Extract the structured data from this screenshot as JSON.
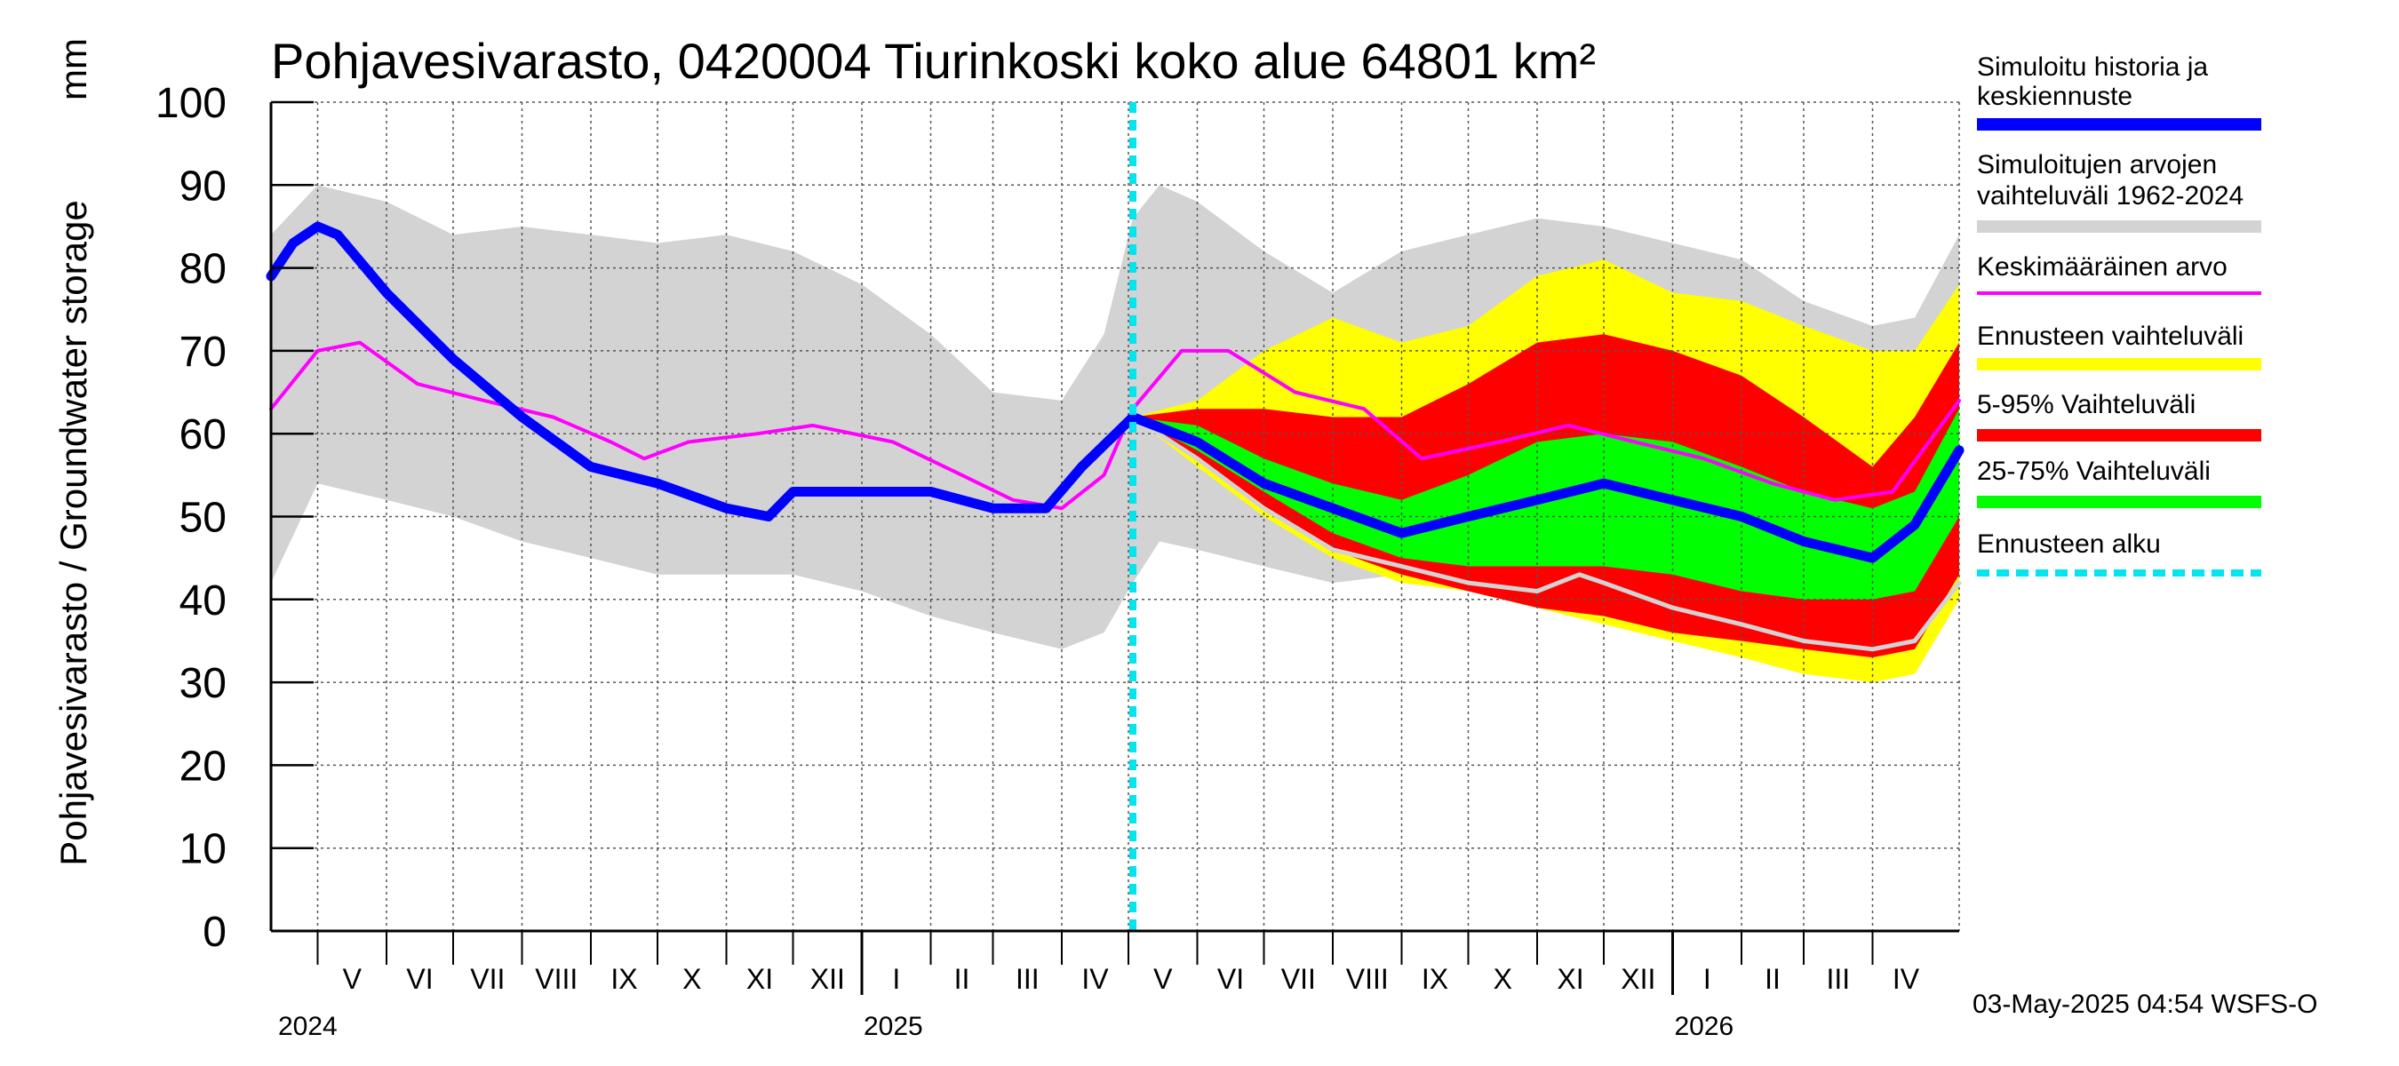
{
  "chart_data": {
    "type": "line",
    "title": "Pohjavesivarasto, 0420004 Tiurinkoski koko alue 64801 km²",
    "ylabel": "Pohjavesivarasto / Groundwater storage",
    "yunit": "mm",
    "ylim": [
      0,
      100
    ],
    "yticks": [
      0,
      10,
      20,
      30,
      40,
      50,
      60,
      70,
      80,
      90,
      100
    ],
    "xlim": [
      "2024-04-10",
      "2026-05-10"
    ],
    "forecast_start": "2025-05-03",
    "grid": true,
    "legend_position": "right",
    "months": [
      {
        "label": "V",
        "date": "2024-05-15"
      },
      {
        "label": "VI",
        "date": "2024-06-15"
      },
      {
        "label": "VII",
        "date": "2024-07-15"
      },
      {
        "label": "VIII",
        "date": "2024-08-15"
      },
      {
        "label": "IX",
        "date": "2024-09-15"
      },
      {
        "label": "X",
        "date": "2024-10-15"
      },
      {
        "label": "XI",
        "date": "2024-11-15"
      },
      {
        "label": "XII",
        "date": "2024-12-15"
      },
      {
        "label": "I",
        "date": "2025-01-15"
      },
      {
        "label": "II",
        "date": "2025-02-15"
      },
      {
        "label": "III",
        "date": "2025-03-15"
      },
      {
        "label": "IV",
        "date": "2025-04-15"
      },
      {
        "label": "V",
        "date": "2025-05-15"
      },
      {
        "label": "VI",
        "date": "2025-06-15"
      },
      {
        "label": "VII",
        "date": "2025-07-15"
      },
      {
        "label": "VIII",
        "date": "2025-08-15"
      },
      {
        "label": "IX",
        "date": "2025-09-15"
      },
      {
        "label": "X",
        "date": "2025-10-15"
      },
      {
        "label": "XI",
        "date": "2025-11-15"
      },
      {
        "label": "XII",
        "date": "2025-12-15"
      },
      {
        "label": "I",
        "date": "2026-01-15"
      },
      {
        "label": "II",
        "date": "2026-02-15"
      },
      {
        "label": "III",
        "date": "2026-03-15"
      },
      {
        "label": "IV",
        "date": "2026-04-15"
      }
    ],
    "years": [
      {
        "label": "2024",
        "date": "2024-04-10"
      },
      {
        "label": "2025",
        "date": "2025-01-01"
      },
      {
        "label": "2026",
        "date": "2026-01-01"
      }
    ],
    "bands": [
      {
        "name": "Simuloitujen arvojen vaihteluväli 1962-2024",
        "color": "#d3d3d3",
        "x": [
          "2024-04-10",
          "2024-05-01",
          "2024-06-01",
          "2024-07-01",
          "2024-08-01",
          "2024-09-01",
          "2024-10-01",
          "2024-11-01",
          "2024-12-01",
          "2025-01-01",
          "2025-02-01",
          "2025-03-01",
          "2025-04-01",
          "2025-04-20",
          "2025-05-03",
          "2025-05-15",
          "2025-06-01",
          "2025-07-01",
          "2025-08-01",
          "2025-09-01",
          "2025-10-01",
          "2025-11-01",
          "2025-12-01",
          "2026-01-01",
          "2026-02-01",
          "2026-03-01",
          "2026-04-01",
          "2026-04-20",
          "2026-05-10"
        ],
        "upper": [
          84,
          90,
          88,
          84,
          85,
          84,
          83,
          84,
          82,
          78,
          72,
          65,
          64,
          72,
          86,
          90,
          88,
          82,
          77,
          82,
          84,
          86,
          85,
          83,
          81,
          76,
          73,
          74,
          84
        ],
        "lower": [
          42,
          54,
          52,
          50,
          47,
          45,
          43,
          43,
          43,
          41,
          38,
          36,
          34,
          36,
          42,
          47,
          46,
          44,
          42,
          43,
          42,
          40,
          38,
          36,
          35,
          33,
          32,
          34,
          40
        ]
      },
      {
        "name": "Ennusteen vaihteluväli",
        "color": "#ffff00",
        "x": [
          "2025-05-03",
          "2025-06-01",
          "2025-07-01",
          "2025-08-01",
          "2025-09-01",
          "2025-10-01",
          "2025-11-01",
          "2025-12-01",
          "2026-01-01",
          "2026-02-01",
          "2026-03-01",
          "2026-04-01",
          "2026-04-20",
          "2026-05-10"
        ],
        "upper": [
          62,
          64,
          70,
          74,
          71,
          73,
          79,
          81,
          77,
          76,
          73,
          70,
          70,
          78
        ],
        "lower": [
          62,
          56,
          50,
          45,
          42,
          41,
          39,
          37,
          35,
          33,
          31,
          30,
          31,
          40
        ]
      },
      {
        "name": "5-95% Vaihteluväli",
        "color": "#ff0000",
        "x": [
          "2025-05-03",
          "2025-06-01",
          "2025-07-01",
          "2025-08-01",
          "2025-09-01",
          "2025-10-01",
          "2025-11-01",
          "2025-12-01",
          "2026-01-01",
          "2026-02-01",
          "2026-03-01",
          "2026-04-01",
          "2026-04-20",
          "2026-05-10"
        ],
        "upper": [
          62,
          63,
          63,
          62,
          62,
          66,
          71,
          72,
          70,
          67,
          62,
          56,
          62,
          71
        ],
        "lower": [
          62,
          57,
          51,
          46,
          43,
          41,
          39,
          38,
          36,
          35,
          34,
          33,
          34,
          43
        ]
      },
      {
        "name": "25-75% Vaihteluväli",
        "color": "#00ff00",
        "x": [
          "2025-05-03",
          "2025-06-01",
          "2025-07-01",
          "2025-08-01",
          "2025-09-01",
          "2025-10-01",
          "2025-11-01",
          "2025-12-01",
          "2026-01-01",
          "2026-02-01",
          "2026-03-01",
          "2026-04-01",
          "2026-04-20",
          "2026-05-10"
        ],
        "upper": [
          62,
          61,
          57,
          54,
          52,
          55,
          59,
          60,
          59,
          56,
          53,
          51,
          53,
          63
        ],
        "lower": [
          62,
          58,
          53,
          48,
          45,
          44,
          44,
          44,
          43,
          41,
          40,
          40,
          41,
          50
        ]
      }
    ],
    "series": [
      {
        "name": "Simuloitu historia ja keskiennuste",
        "color": "#0000ff",
        "width": 11,
        "x": [
          "2024-04-10",
          "2024-04-20",
          "2024-05-01",
          "2024-05-10",
          "2024-06-01",
          "2024-07-01",
          "2024-08-01",
          "2024-09-01",
          "2024-10-01",
          "2024-11-01",
          "2024-11-20",
          "2024-12-01",
          "2025-01-01",
          "2025-02-01",
          "2025-03-01",
          "2025-03-25",
          "2025-04-10",
          "2025-05-03",
          "2025-06-01",
          "2025-07-01",
          "2025-08-01",
          "2025-09-01",
          "2025-10-01",
          "2025-11-01",
          "2025-12-01",
          "2026-01-01",
          "2026-02-01",
          "2026-03-01",
          "2026-04-01",
          "2026-04-20",
          "2026-05-10"
        ],
        "values": [
          79,
          83,
          85,
          84,
          77,
          69,
          62,
          56,
          54,
          51,
          50,
          53,
          53,
          53,
          51,
          51,
          56,
          62,
          59,
          54,
          51,
          48,
          50,
          52,
          54,
          52,
          50,
          47,
          45,
          49,
          58
        ]
      },
      {
        "name": "Keskimääräinen arvo",
        "color": "#ff00ff",
        "width": 4,
        "x": [
          "2024-04-10",
          "2024-05-01",
          "2024-05-20",
          "2024-06-15",
          "2024-07-15",
          "2024-08-15",
          "2024-09-10",
          "2024-09-25",
          "2024-10-15",
          "2024-11-15",
          "2024-12-10",
          "2025-01-15",
          "2025-02-15",
          "2025-03-10",
          "2025-04-01",
          "2025-04-20",
          "2025-05-03",
          "2025-05-25",
          "2025-06-15",
          "2025-07-15",
          "2025-08-15",
          "2025-09-10",
          "2025-10-15",
          "2025-11-15",
          "2025-12-15",
          "2026-01-15",
          "2026-02-15",
          "2026-03-15",
          "2026-04-10",
          "2026-05-10"
        ],
        "values": [
          63,
          70,
          71,
          66,
          64,
          62,
          59,
          57,
          59,
          60,
          61,
          59,
          55,
          52,
          51,
          55,
          63,
          70,
          70,
          65,
          63,
          57,
          59,
          61,
          59,
          57,
          54,
          52,
          53,
          64
        ]
      },
      {
        "name": "",
        "color": "#d3d3d3",
        "width": 5,
        "x": [
          "2025-05-03",
          "2025-06-01",
          "2025-07-01",
          "2025-08-01",
          "2025-09-01",
          "2025-10-01",
          "2025-11-01",
          "2025-11-20",
          "2025-12-01",
          "2026-01-01",
          "2026-02-01",
          "2026-03-01",
          "2026-04-01",
          "2026-04-20",
          "2026-05-10"
        ],
        "values": [
          62,
          57,
          51,
          46,
          44,
          42,
          41,
          43,
          42,
          39,
          37,
          35,
          34,
          35,
          42
        ]
      }
    ],
    "forecast_line": {
      "name": "Ennusteen alku",
      "color": "#00e5ee"
    }
  },
  "legend": [
    {
      "lines": [
        "Simuloitu historia ja",
        "keskiennuste"
      ],
      "color": "#0000ff",
      "style": "thick"
    },
    {
      "lines": [
        "Simuloitujen arvojen",
        "vaihteluväli 1962-2024"
      ],
      "color": "#d3d3d3",
      "style": "thick"
    },
    {
      "lines": [
        "Keskimääräinen arvo"
      ],
      "color": "#ff00ff",
      "style": "thin"
    },
    {
      "lines": [
        "Ennusteen vaihteluväli"
      ],
      "color": "#ffff00",
      "style": "thick"
    },
    {
      "lines": [
        "5-95% Vaihteluväli"
      ],
      "color": "#ff0000",
      "style": "thick"
    },
    {
      "lines": [
        "25-75% Vaihteluväli"
      ],
      "color": "#00ff00",
      "style": "thick"
    },
    {
      "lines": [
        "Ennusteen alku"
      ],
      "color": "#00e5ee",
      "style": "dashed"
    }
  ],
  "footer": "03-May-2025 04:54 WSFS-O"
}
